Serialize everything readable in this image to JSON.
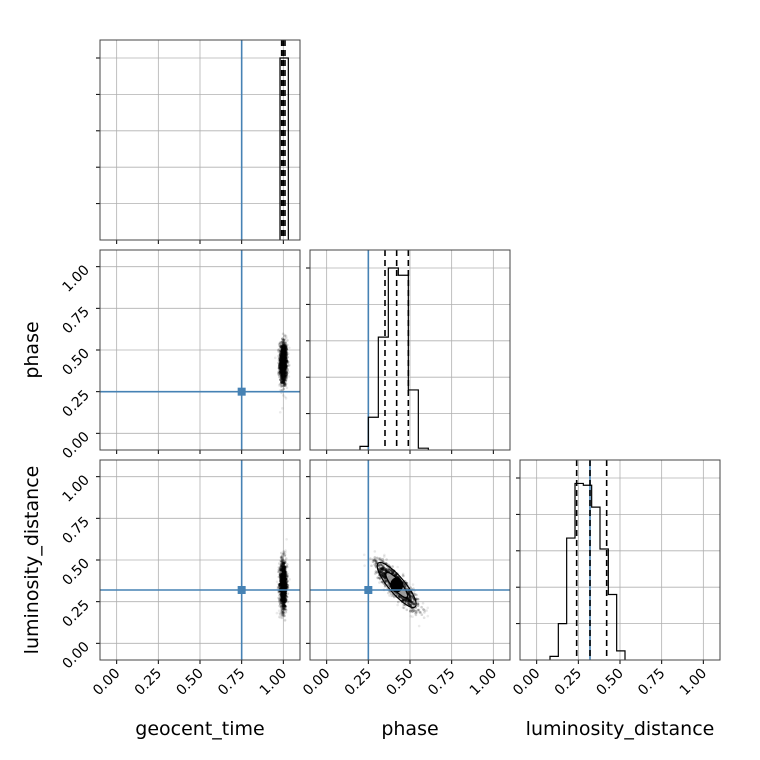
{
  "chart_data": {
    "type": "corner",
    "parameters": [
      "geocent_time",
      "phase",
      "luminosity_distance"
    ],
    "axis_labels": {
      "x": [
        "geocent_time",
        "phase",
        "luminosity_distance"
      ],
      "y": [
        "phase",
        "luminosity_distance"
      ]
    },
    "range": [
      -0.1,
      1.1
    ],
    "ticks": [
      0.0,
      0.25,
      0.5,
      0.75,
      1.0
    ],
    "tick_labels": [
      "0.00",
      "0.25",
      "0.50",
      "0.75",
      "1.00"
    ],
    "grid": true,
    "truths": {
      "geocent_time": 0.75,
      "phase": 0.25,
      "luminosity_distance": 0.32,
      "color": "#4682b4"
    },
    "quantiles": {
      "geocent_time": [
        0.99,
        1.0,
        1.01
      ],
      "phase": [
        0.35,
        0.42,
        0.49
      ],
      "luminosity_distance": [
        0.24,
        0.32,
        0.42
      ]
    },
    "histograms": [
      {
        "parameter": "geocent_time",
        "edges": [
          0.98,
          1.03
        ],
        "counts": [
          1.0
        ]
      },
      {
        "parameter": "phase",
        "edges": [
          0.2,
          0.25,
          0.31,
          0.37,
          0.43,
          0.49,
          0.55,
          0.61
        ],
        "counts": [
          0.02,
          0.18,
          0.62,
          1.0,
          0.96,
          0.33,
          0.01
        ]
      },
      {
        "parameter": "luminosity_distance",
        "edges": [
          0.08,
          0.13,
          0.18,
          0.23,
          0.28,
          0.33,
          0.38,
          0.43,
          0.48,
          0.53
        ],
        "counts": [
          0.02,
          0.2,
          0.67,
          0.97,
          0.96,
          0.84,
          0.61,
          0.36,
          0.05
        ]
      }
    ],
    "joint_densities": [
      {
        "x": "geocent_time",
        "y": "phase",
        "x_center": 1.0,
        "y_center": 0.42,
        "x_spread": 0.012,
        "y_spread": 0.07,
        "correlation": 0.0
      },
      {
        "x": "geocent_time",
        "y": "luminosity_distance",
        "x_center": 1.0,
        "y_center": 0.35,
        "x_spread": 0.012,
        "y_spread": 0.08,
        "correlation": 0.0
      },
      {
        "x": "phase",
        "y": "luminosity_distance",
        "x_center": 0.42,
        "y_center": 0.35,
        "x_spread": 0.065,
        "y_spread": 0.075,
        "correlation": -0.85
      }
    ],
    "colors": {
      "hist": "#000000",
      "truth": "#4682b4",
      "grid": "#b0b0b0",
      "density": "#000000"
    }
  }
}
